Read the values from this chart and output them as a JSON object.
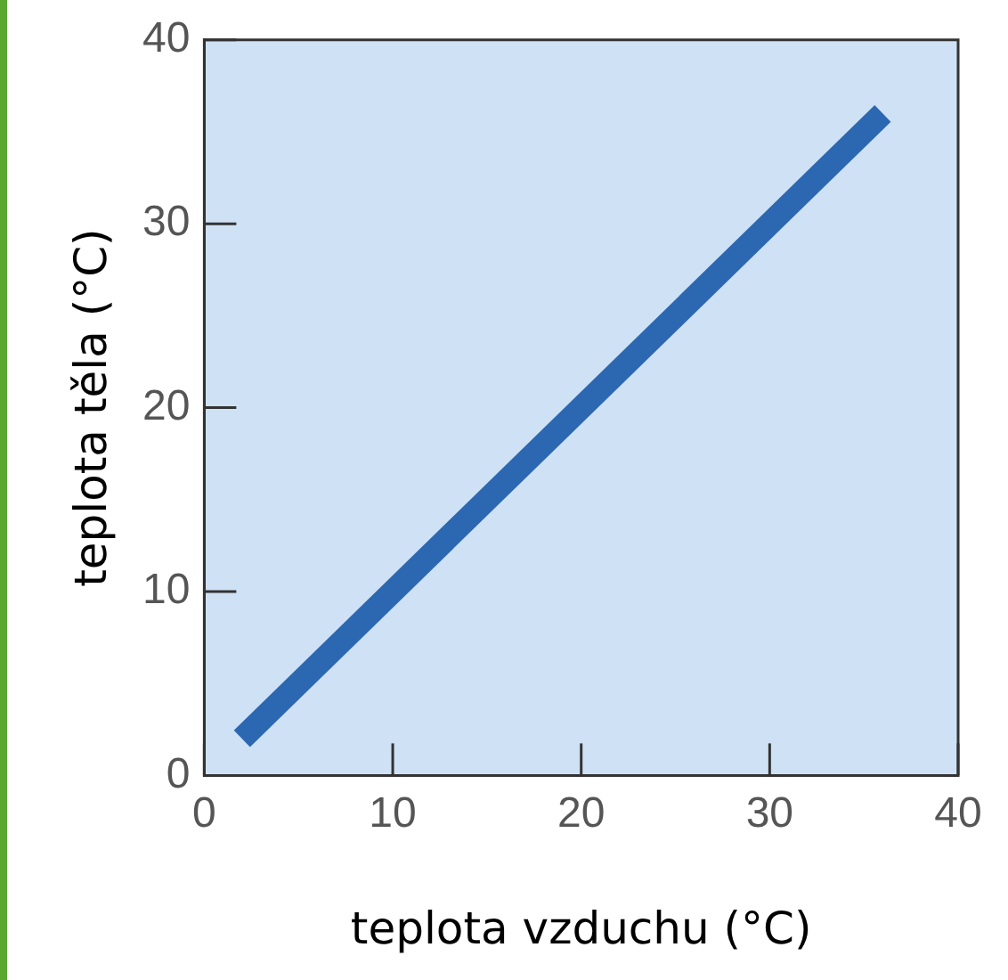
{
  "chart_data": {
    "type": "line",
    "xlabel": "teplota vzduchu (°C)",
    "ylabel": "teplota těla (°C)",
    "xlim": [
      0,
      40
    ],
    "ylim": [
      0,
      40
    ],
    "xticks": [
      0,
      10,
      20,
      30,
      40
    ],
    "yticks": [
      0,
      10,
      20,
      30,
      40
    ],
    "grid": false,
    "legend": false,
    "marker": "none",
    "line_style": "solid",
    "series": [
      {
        "color": "#2c67b1",
        "x": [
          2,
          36
        ],
        "values": [
          2,
          36
        ]
      }
    ]
  }
}
